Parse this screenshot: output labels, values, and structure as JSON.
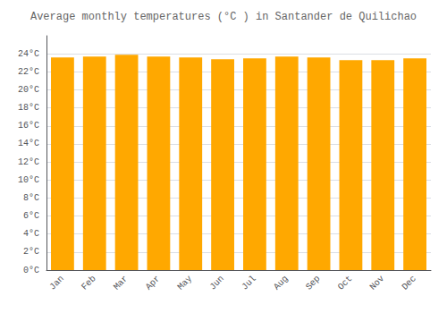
{
  "chart_data": {
    "type": "bar",
    "title": "Average monthly temperatures (°C ) in Santander de Quilichao",
    "categories": [
      "Jan",
      "Feb",
      "Mar",
      "Apr",
      "May",
      "Jun",
      "Jul",
      "Aug",
      "Sep",
      "Oct",
      "Nov",
      "Dec"
    ],
    "values": [
      23.6,
      23.7,
      23.9,
      23.7,
      23.6,
      23.4,
      23.5,
      23.7,
      23.6,
      23.3,
      23.3,
      23.5
    ],
    "color": "#FFA800",
    "ylim": [
      0,
      26
    ],
    "yticks": [
      {
        "value": 0,
        "label": "0°C"
      },
      {
        "value": 2,
        "label": "2°C"
      },
      {
        "value": 4,
        "label": "4°C"
      },
      {
        "value": 6,
        "label": "6°C"
      },
      {
        "value": 8,
        "label": "8°C"
      },
      {
        "value": 10,
        "label": "10°C"
      },
      {
        "value": 12,
        "label": "12°C"
      },
      {
        "value": 14,
        "label": "14°C"
      },
      {
        "value": 16,
        "label": "16°C"
      },
      {
        "value": 18,
        "label": "18°C"
      },
      {
        "value": 20,
        "label": "20°C"
      },
      {
        "value": 22,
        "label": "22°C"
      },
      {
        "value": 24,
        "label": "24°C"
      }
    ],
    "grid": true
  }
}
